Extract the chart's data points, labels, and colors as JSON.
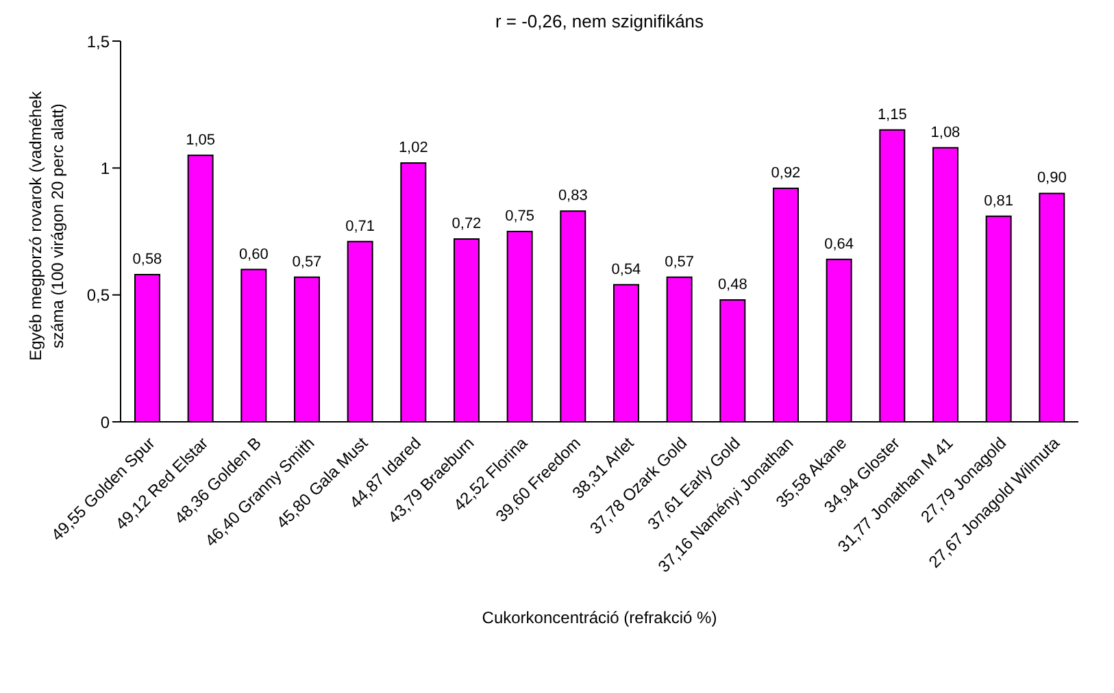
{
  "chart_data": {
    "type": "bar",
    "title": "r = -0,26, nem szignifikáns",
    "xlabel": "Cukorkoncentráció (refrakció %)",
    "ylabel": "Egyéb megporzó rovarok (vadméhek\nszáma (100 virágon 20 perc alatt)",
    "categories": [
      "49,55 Golden Spur",
      "49,12 Red Elstar",
      "48,36 Golden B",
      "46,40 Granny Smith",
      "45,80 Gala Must",
      "44,87 Idared",
      "43,79 Braeburn",
      "42,52 Florina",
      "39,60 Freedom",
      "38,31 Arlet",
      "37,78 Ozark Gold",
      "37,61 Early Gold",
      "37,16 Naményi Jonathan",
      "35,58 Akane",
      "34,94 Gloster",
      "31,77 Jonathan M 41",
      "27,79 Jonagold",
      "27,67 Jonagold Wilmuta"
    ],
    "values": [
      0.58,
      1.05,
      0.6,
      0.57,
      0.71,
      1.02,
      0.72,
      0.75,
      0.83,
      0.54,
      0.57,
      0.48,
      0.92,
      0.64,
      1.15,
      1.08,
      0.81,
      0.9
    ],
    "value_labels": [
      "0,58",
      "1,05",
      "0,60",
      "0,57",
      "0,71",
      "1,02",
      "0,72",
      "0,75",
      "0,83",
      "0,54",
      "0,57",
      "0,48",
      "0,92",
      "0,64",
      "1,15",
      "1,08",
      "0,81",
      "0,90"
    ],
    "color": "#ff00ff",
    "ylim": [
      0,
      1.5
    ],
    "yticks": [
      0,
      {
        "value": 0.5,
        "label": "0,5"
      },
      1,
      {
        "value": 1.5,
        "label": "1,5"
      }
    ],
    "grid": false,
    "legend": false
  }
}
